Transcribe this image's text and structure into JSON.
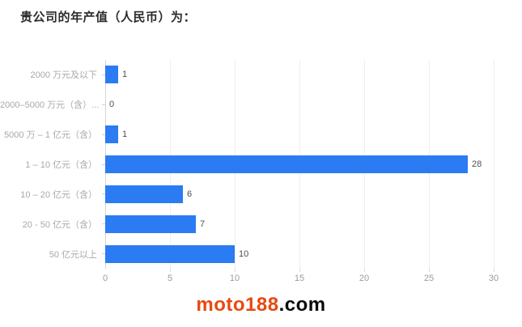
{
  "title": "贵公司的年产值（人民币）为：",
  "chart_data": {
    "type": "bar",
    "orientation": "horizontal",
    "title": "贵公司的年产值（人民币）为：",
    "categories": [
      "2000 万元及以下",
      "2000–5000 万元（含）...",
      "5000 万 – 1 亿元（含）",
      "1 – 10 亿元（含）",
      "10 – 20 亿元（含）",
      "20 - 50 亿元（含）",
      "50 亿元以上"
    ],
    "values": [
      1,
      0,
      1,
      28,
      6,
      7,
      10
    ],
    "xlim": [
      0,
      30
    ],
    "xticks": [
      0,
      5,
      10,
      15,
      20,
      25,
      30
    ],
    "grid": true,
    "value_labels": true,
    "bar_color": "#2b7bf3",
    "category_label_color": "#a9a9a9",
    "value_label_color": "#4f4f4f",
    "legend": "none"
  },
  "watermark": {
    "brand": "moto188",
    "tld": ".com",
    "brand_color": "#e8490f"
  }
}
